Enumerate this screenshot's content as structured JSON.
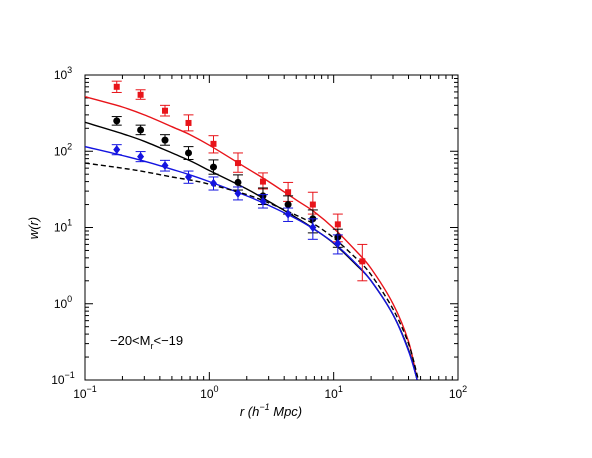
{
  "chart_data": {
    "type": "scatter",
    "xscale": "log",
    "yscale": "log",
    "xlim": [
      0.1,
      100
    ],
    "ylim": [
      0.1,
      1000
    ],
    "grid": false,
    "legend": "none",
    "xlabel": {
      "main": "r (h",
      "sup": "−1",
      "rest": " Mpc)"
    },
    "ylabel": "w(r)",
    "annotation": {
      "pre": "−20<M",
      "sub": "r",
      "post": "<−19"
    },
    "x_ticks": [
      {
        "value": 0.1,
        "base": "10",
        "exp": "−1"
      },
      {
        "value": 1,
        "base": "10",
        "exp": "0"
      },
      {
        "value": 10,
        "base": "10",
        "exp": "1"
      },
      {
        "value": 100,
        "base": "10",
        "exp": "2"
      }
    ],
    "y_ticks": [
      {
        "value": 0.1,
        "base": "10",
        "exp": "−1"
      },
      {
        "value": 1,
        "base": "10",
        "exp": "0"
      },
      {
        "value": 10,
        "base": "10",
        "exp": "1"
      },
      {
        "value": 100,
        "base": "10",
        "exp": "2"
      },
      {
        "value": 1000,
        "base": "10",
        "exp": "3"
      }
    ],
    "series": [
      {
        "color": "#e8141a",
        "marker": "square",
        "x": [
          0.18,
          0.28,
          0.44,
          0.68,
          1.08,
          1.7,
          2.7,
          4.3,
          6.8,
          10.8,
          17
        ],
        "y": [
          700,
          550,
          340,
          235,
          125,
          70,
          40,
          29,
          20,
          11,
          3.6
        ],
        "ylow": [
          590,
          480,
          290,
          185,
          95,
          53,
          32,
          22,
          15,
          6.5,
          2.0
        ],
        "yhigh": [
          830,
          640,
          400,
          300,
          160,
          95,
          52,
          39,
          29,
          15,
          6.0
        ]
      },
      {
        "color": "#000000",
        "marker": "circle",
        "x": [
          0.18,
          0.28,
          0.44,
          0.68,
          1.08,
          1.7,
          2.7,
          4.3,
          6.8,
          10.8
        ],
        "y": [
          250,
          190,
          140,
          95,
          62,
          39,
          26,
          20,
          13,
          7.5
        ],
        "ylow": [
          220,
          165,
          120,
          78,
          50,
          31,
          20,
          15,
          8.5,
          5.5
        ],
        "yhigh": [
          285,
          220,
          165,
          115,
          77,
          49,
          33,
          26,
          17,
          9.5
        ]
      },
      {
        "color": "#1414e0",
        "marker": "diamond",
        "x": [
          0.18,
          0.28,
          0.44,
          0.68,
          1.08,
          1.7,
          2.7,
          4.3,
          6.8,
          10.8
        ],
        "y": [
          105,
          85,
          65,
          46,
          38,
          28,
          22,
          15,
          10,
          6.2
        ],
        "ylow": [
          90,
          73,
          55,
          38,
          31,
          23,
          18,
          12,
          7.0,
          4.5
        ],
        "yhigh": [
          122,
          99,
          76,
          55,
          46,
          34,
          27,
          18,
          13,
          8.0
        ]
      }
    ],
    "curves": [
      {
        "color": "#e8141a",
        "dash": false,
        "x": [
          0.1,
          0.2,
          0.3,
          0.5,
          0.7,
          1,
          2,
          3,
          5,
          7,
          10,
          15,
          20,
          30,
          40,
          47
        ],
        "y": [
          520,
          380,
          300,
          210,
          165,
          120,
          60,
          40,
          23,
          16,
          9.8,
          5.0,
          2.9,
          1.0,
          0.32,
          0.1
        ]
      },
      {
        "color": "#000000",
        "dash": false,
        "x": [
          0.1,
          0.2,
          0.3,
          0.5,
          0.7,
          1,
          2,
          3,
          5,
          7,
          10,
          15,
          20,
          30,
          40,
          47
        ],
        "y": [
          240,
          170,
          135,
          95,
          75,
          56,
          32,
          22,
          13.5,
          9.5,
          6.2,
          3.3,
          2.0,
          0.72,
          0.25,
          0.1
        ]
      },
      {
        "color": "#1414e0",
        "dash": false,
        "x": [
          0.1,
          0.2,
          0.3,
          0.5,
          0.7,
          1,
          2,
          3,
          5,
          7,
          10,
          15,
          20,
          30,
          40,
          47
        ],
        "y": [
          115,
          88,
          74,
          58,
          49,
          40,
          26,
          19.5,
          13,
          9.4,
          6.3,
          3.4,
          2.0,
          0.72,
          0.24,
          0.1
        ]
      },
      {
        "color": "#000000",
        "dash": true,
        "x": [
          0.1,
          0.2,
          0.3,
          0.5,
          0.7,
          1,
          2,
          3,
          5,
          7,
          10,
          15,
          20,
          30,
          40,
          48
        ],
        "y": [
          70,
          60,
          54,
          46,
          42,
          37,
          27,
          21,
          14.5,
          11,
          7.3,
          4.0,
          2.4,
          0.85,
          0.3,
          0.1
        ]
      }
    ]
  }
}
